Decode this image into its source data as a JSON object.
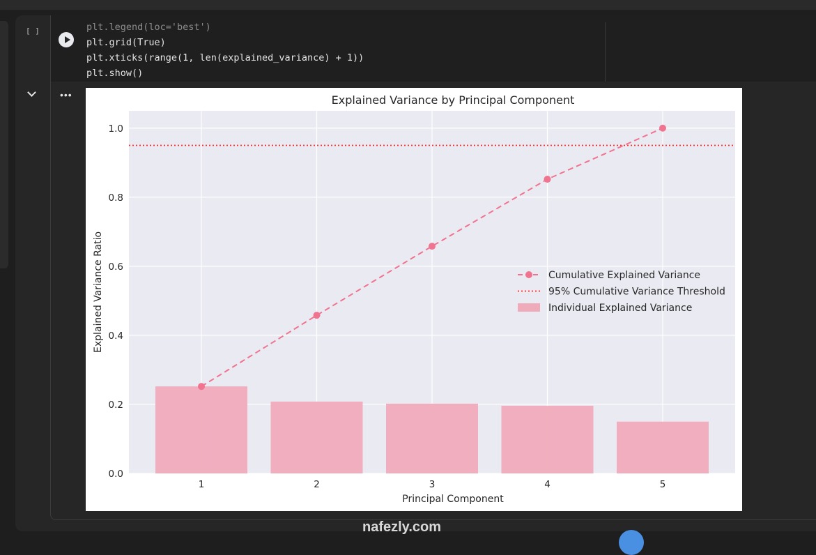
{
  "cell": {
    "exec_count": "[ ]",
    "code_lines": [
      "plt.legend(loc='best')",
      "plt.grid(True)",
      "plt.xticks(range(1, len(explained_variance) + 1))",
      "plt.show()"
    ],
    "output_menu": "•••"
  },
  "watermark": "nafezly.com",
  "colors": {
    "bar": "#f0abbb",
    "line": "#f07490",
    "threshold": "#ff2a2a",
    "plot_bg": "#eaeaf2"
  },
  "chart_data": {
    "type": "bar",
    "title": "Explained Variance by Principal Component",
    "xlabel": "Principal Component",
    "ylabel": "Explained Variance Ratio",
    "categories": [
      1,
      2,
      3,
      4,
      5
    ],
    "x_tick_labels": [
      "1",
      "2",
      "3",
      "4",
      "5"
    ],
    "y_tick_labels": [
      "0.0",
      "0.2",
      "0.4",
      "0.6",
      "0.8",
      "1.0"
    ],
    "y_ticks": [
      0.0,
      0.2,
      0.4,
      0.6,
      0.8,
      1.0
    ],
    "ylim": [
      0,
      1.05
    ],
    "grid": true,
    "legend_position": "center-right",
    "series": [
      {
        "name": "Individual Explained Variance",
        "kind": "bar",
        "values": [
          0.252,
          0.208,
          0.202,
          0.196,
          0.15
        ]
      },
      {
        "name": "Cumulative Explained Variance",
        "kind": "line",
        "style": "dashed",
        "marker": "circle",
        "values": [
          0.252,
          0.458,
          0.658,
          0.852,
          1.0
        ]
      },
      {
        "name": "95% Cumulative Variance Threshold",
        "kind": "hline",
        "style": "dotted",
        "value": 0.95
      }
    ],
    "legend": [
      "Cumulative Explained Variance",
      "95% Cumulative Variance Threshold",
      "Individual Explained Variance"
    ]
  }
}
